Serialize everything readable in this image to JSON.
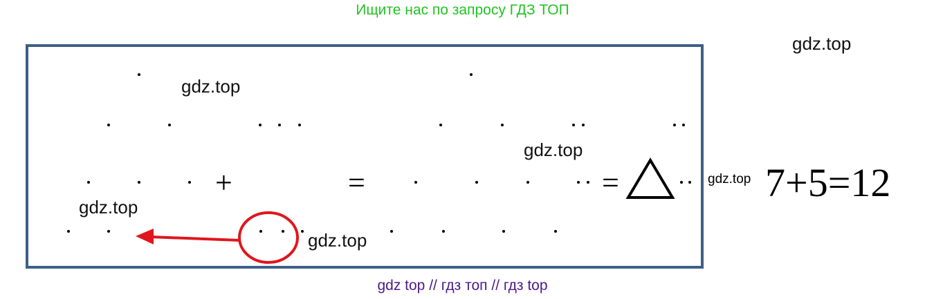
{
  "banner": "Ищите нас по запросу ГДЗ ТОП",
  "watermarks": [
    "gdz.top",
    "gdz.top",
    "gdz.top",
    "gdz.top",
    "gdz.top",
    "gdz.top"
  ],
  "symbols": {
    "plus": "+",
    "equals": "=",
    "equals2": "="
  },
  "equation": "7+5=12",
  "footer": "gdz top  //  гдз топ  //  гдз top",
  "colors": {
    "banner": "#22c322",
    "frame": "#3d5f88",
    "arrow": "#e0161c",
    "footer": "#4b1a8a"
  }
}
